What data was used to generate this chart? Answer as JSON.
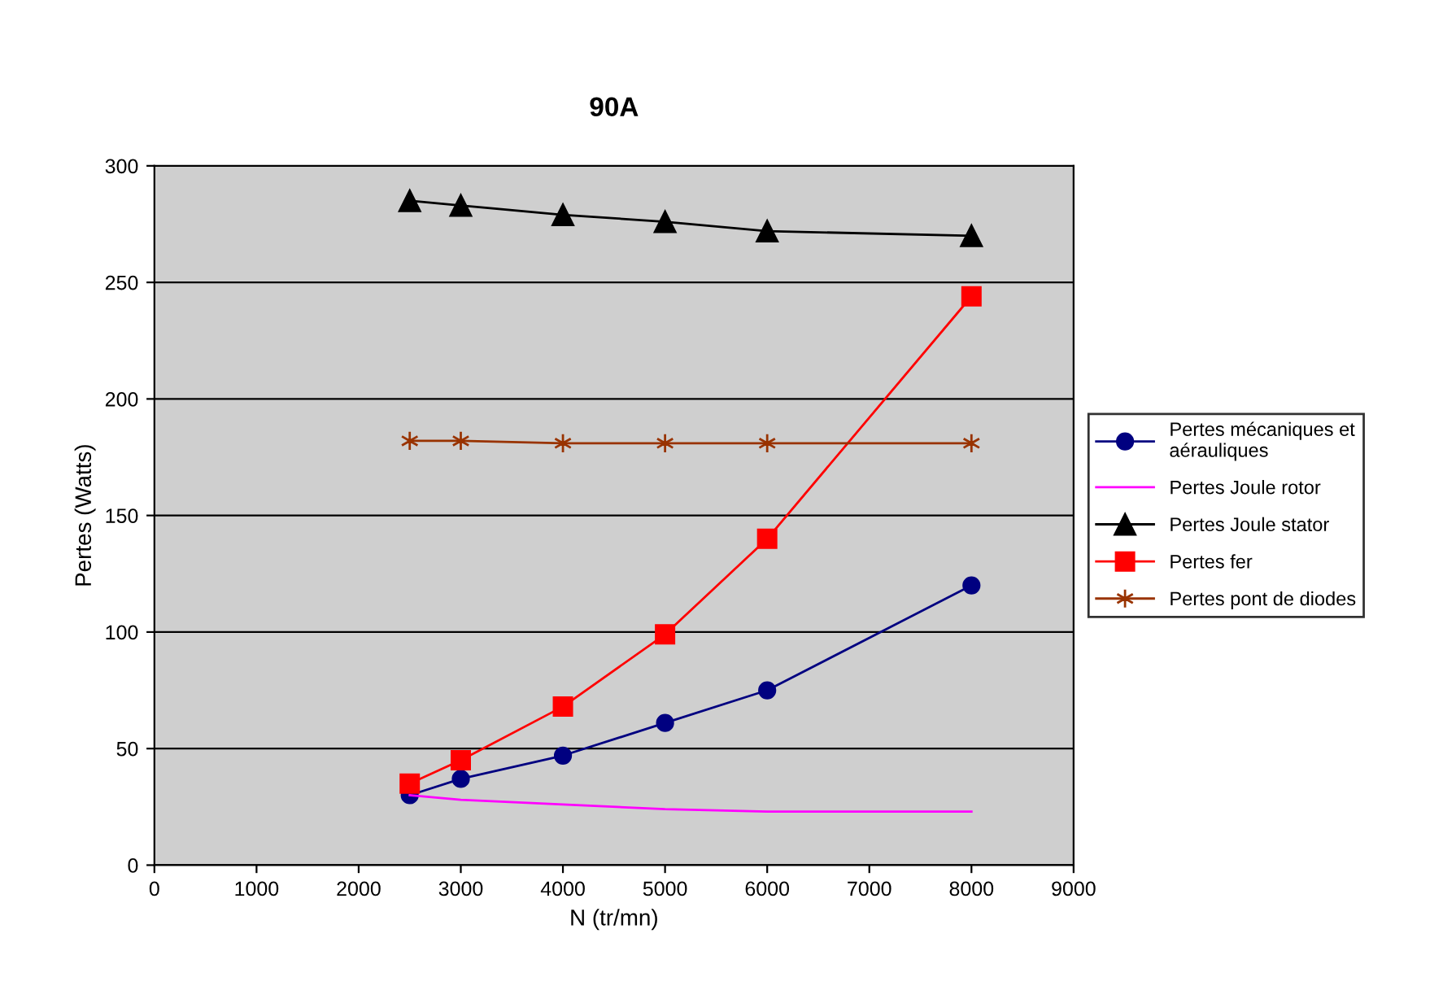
{
  "chart_data": {
    "type": "line",
    "title": "90A",
    "xlabel": "N (tr/mn)",
    "ylabel": "Pertes (Watts)",
    "xlim": [
      0,
      9000
    ],
    "xticks": [
      0,
      1000,
      2000,
      3000,
      4000,
      5000,
      6000,
      7000,
      8000,
      9000
    ],
    "ylim": [
      0,
      300
    ],
    "yticks": [
      0,
      50,
      100,
      150,
      200,
      250,
      300
    ],
    "grid": "y",
    "legend": "right",
    "x": [
      2500,
      3000,
      4000,
      5000,
      6000,
      8000
    ],
    "series": [
      {
        "name": "Pertes mécaniques et aérauliques",
        "color": "#000080",
        "marker": "circle",
        "values": [
          30,
          37,
          47,
          61,
          75,
          120
        ]
      },
      {
        "name": "Pertes Joule rotor",
        "color": "#ff00ff",
        "marker": "none",
        "values": [
          30,
          28,
          26,
          24,
          23,
          23
        ]
      },
      {
        "name": "Pertes Joule stator",
        "color": "#000000",
        "marker": "triangle",
        "values": [
          285,
          283,
          279,
          276,
          272,
          270
        ]
      },
      {
        "name": "Pertes fer",
        "color": "#ff0000",
        "marker": "square",
        "values": [
          35,
          45,
          68,
          99,
          140,
          244
        ]
      },
      {
        "name": "Pertes pont de diodes",
        "color": "#993300",
        "marker": "cross",
        "values": [
          182,
          182,
          181,
          181,
          181,
          181
        ]
      }
    ]
  }
}
